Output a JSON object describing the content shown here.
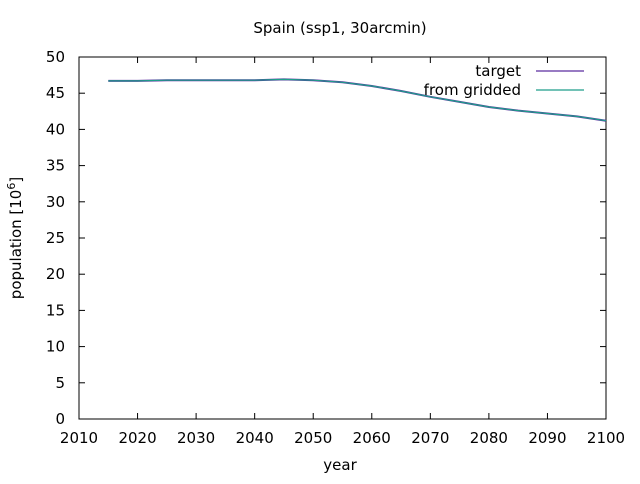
{
  "chart_data": {
    "type": "line",
    "title": "Spain (ssp1, 30arcmin)",
    "xlabel": "year",
    "ylabel_main": "population [10",
    "ylabel_sup": "6",
    "ylabel_tail": "]",
    "xlim": [
      2010,
      2100
    ],
    "ylim": [
      0,
      50
    ],
    "x_ticks": [
      2010,
      2020,
      2030,
      2040,
      2050,
      2060,
      2070,
      2080,
      2090,
      2100
    ],
    "y_ticks": [
      0,
      5,
      10,
      15,
      20,
      25,
      30,
      35,
      40,
      45,
      50
    ],
    "grid": false,
    "legend_position": "top-right",
    "series": [
      {
        "name": "target",
        "color": "#5b2c9f",
        "x": [
          2015,
          2020,
          2025,
          2030,
          2035,
          2040,
          2045,
          2050,
          2055,
          2060,
          2065,
          2070,
          2075,
          2080,
          2085,
          2090,
          2095,
          2100
        ],
        "values": [
          46.7,
          46.7,
          46.8,
          46.8,
          46.8,
          46.8,
          46.9,
          46.8,
          46.5,
          46.0,
          45.3,
          44.5,
          43.8,
          43.1,
          42.6,
          42.2,
          41.8,
          41.2
        ]
      },
      {
        "name": "from gridded",
        "color": "#1e9e8a",
        "x": [
          2015,
          2020,
          2025,
          2030,
          2035,
          2040,
          2045,
          2050,
          2055,
          2060,
          2065,
          2070,
          2075,
          2080,
          2085,
          2090,
          2095,
          2100
        ],
        "values": [
          46.7,
          46.7,
          46.8,
          46.8,
          46.8,
          46.8,
          46.9,
          46.8,
          46.5,
          46.0,
          45.3,
          44.5,
          43.8,
          43.1,
          42.6,
          42.2,
          41.8,
          41.2
        ]
      }
    ]
  }
}
